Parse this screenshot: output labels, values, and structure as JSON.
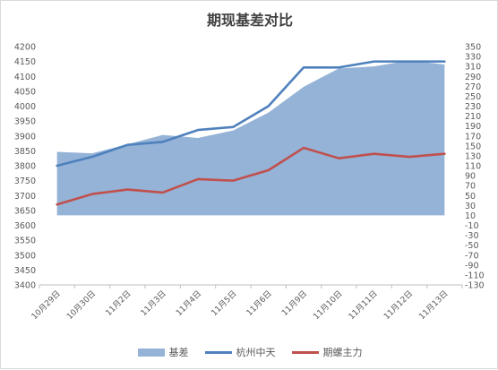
{
  "chart_data": {
    "type": "line",
    "title": "期现基差对比",
    "categories": [
      "10月29日",
      "10月30日",
      "11月2日",
      "11月3日",
      "11月4日",
      "11月5日",
      "11月6日",
      "11月9日",
      "11月10日",
      "11月11日",
      "11月12日",
      "11月13日"
    ],
    "series": [
      {
        "name": "基差",
        "chart_type": "area",
        "axis": "right",
        "color": "#95B3D7",
        "values": [
          138,
          135,
          153,
          172,
          166,
          181,
          217,
          269,
          306,
          310,
          322,
          314
        ]
      },
      {
        "name": "杭州中天",
        "chart_type": "line",
        "axis": "left",
        "color": "#4F81BD",
        "values": [
          3800,
          3830,
          3870,
          3880,
          3920,
          3930,
          4000,
          4130,
          4130,
          4150,
          4150,
          4150
        ]
      },
      {
        "name": "期螺主力",
        "chart_type": "line",
        "axis": "left",
        "color": "#C0504D",
        "values": [
          3670,
          3705,
          3720,
          3710,
          3755,
          3750,
          3785,
          3860,
          3825,
          3840,
          3830,
          3840
        ]
      }
    ],
    "y_left": {
      "min": 3400,
      "max": 4200,
      "step": 50
    },
    "y_right": {
      "min": -130,
      "max": 350,
      "step": 20
    },
    "y_left_ticks": [
      "4200",
      "4150",
      "4100",
      "4050",
      "4000",
      "3950",
      "3900",
      "3850",
      "3800",
      "3750",
      "3700",
      "3650",
      "3600",
      "3550",
      "3500",
      "3450",
      "3400"
    ],
    "y_right_ticks": [
      "350",
      "330",
      "310",
      "290",
      "270",
      "250",
      "230",
      "210",
      "190",
      "170",
      "150",
      "130",
      "110",
      "90",
      "70",
      "50",
      "30",
      "10",
      "-10",
      "-30",
      "-50",
      "-70",
      "-90",
      "-110",
      "-130"
    ],
    "grid": false,
    "legend_position": "bottom"
  }
}
